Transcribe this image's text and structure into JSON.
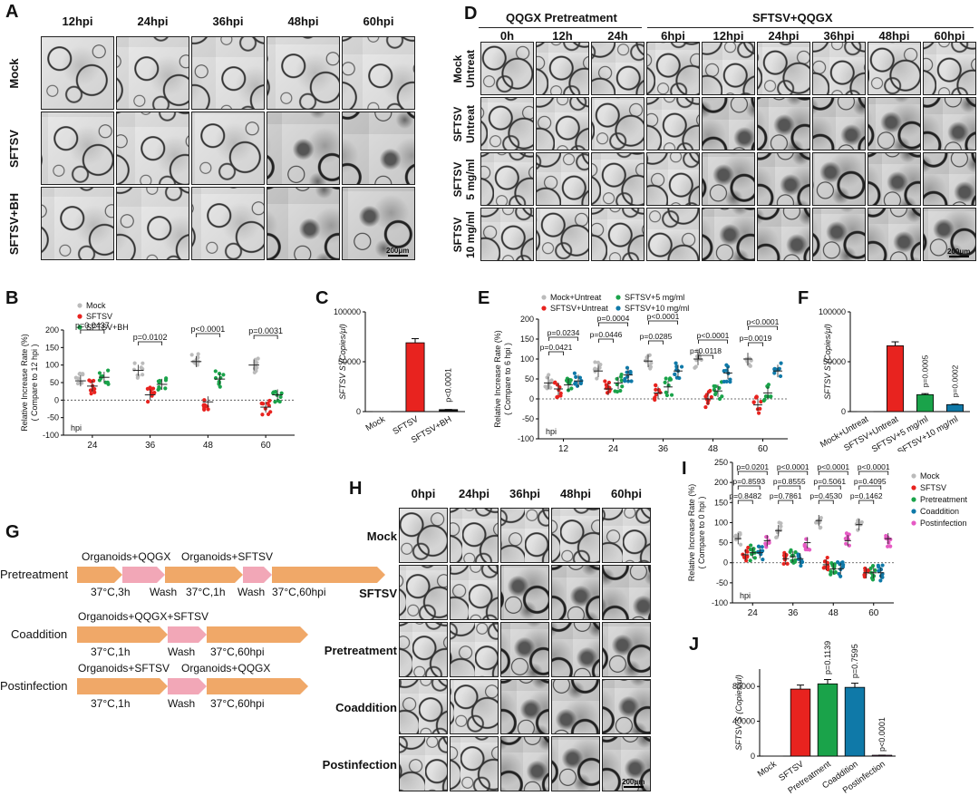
{
  "panels": {
    "A": "A",
    "B": "B",
    "C": "C",
    "D": "D",
    "E": "E",
    "F": "F",
    "G": "G",
    "H": "H",
    "I": "I",
    "J": "J"
  },
  "A": {
    "cols": [
      "12hpi",
      "24hpi",
      "36hpi",
      "48hpi",
      "60hpi"
    ],
    "rows": [
      "Mock",
      "SFTSV",
      "SFTSV+BH"
    ],
    "scale": "200μm"
  },
  "D": {
    "group1": "QQGX Pretreatment",
    "group2": "SFTSV+QQGX",
    "cols": [
      "0h",
      "12h",
      "24h",
      "6hpi",
      "12hpi",
      "24hpi",
      "36hpi",
      "48hpi",
      "60hpi"
    ],
    "rows": [
      [
        "Mock",
        "Untreat"
      ],
      [
        "SFTSV",
        "Untreat"
      ],
      [
        "SFTSV",
        "5 mg/ml"
      ],
      [
        "SFTSV",
        "10 mg/ml"
      ]
    ],
    "scale": "200μm"
  },
  "H": {
    "cols": [
      "0hpi",
      "24hpi",
      "36hpi",
      "48hpi",
      "60hpi"
    ],
    "rows": [
      "Mock",
      "SFTSV",
      "Pretreatment",
      "Coaddition",
      "Postinfection"
    ],
    "scale": "200μm"
  },
  "G": {
    "rows": [
      {
        "name": "Pretreatment",
        "steps": [
          "Organoids+QQGX",
          "Organoids+SFTSV"
        ],
        "under": [
          "37°C,3h",
          "Wash",
          "37°C,1h",
          "Wash",
          "37°C,60hpi"
        ]
      },
      {
        "name": "Coaddition",
        "steps": [
          "Organoids+QQGX+SFTSV"
        ],
        "under": [
          "37°C,1h",
          "Wash",
          "37°C,60hpi"
        ]
      },
      {
        "name": "Postinfection",
        "steps": [
          "Organoids+SFTSV",
          "Organoids+QQGX"
        ],
        "under": [
          "37°C,1h",
          "Wash",
          "37°C,60hpi"
        ]
      }
    ]
  },
  "colors": {
    "grey": "#bbbbbb",
    "red": "#e8231f",
    "green": "#1aa34a",
    "blue": "#0f79a8",
    "pink": "#e65ac4"
  },
  "chart_data": [
    {
      "panel": "B",
      "type": "scatter",
      "ylabel": "Relative Increase Rate (%)",
      "ylabel2": "( Compare to 12 hpi )",
      "xlabel": "hpi",
      "categories": [
        "24",
        "36",
        "48",
        "60"
      ],
      "ylim": [
        -100,
        200
      ],
      "yticks": [
        -100,
        -50,
        0,
        50,
        100,
        150,
        200
      ],
      "series": [
        {
          "name": "Mock",
          "color": "#bbbbbb",
          "means": [
            55,
            85,
            110,
            100
          ]
        },
        {
          "name": "SFTSV",
          "color": "#e8231f",
          "means": [
            40,
            15,
            -5,
            -20
          ]
        },
        {
          "name": "SFTSV+BH",
          "color": "#1aa34a",
          "means": [
            65,
            45,
            60,
            15
          ]
        }
      ],
      "pvalues": [
        "p=0.0437",
        "p=0.0102",
        "p<0.0001",
        "p=0.0031"
      ]
    },
    {
      "panel": "C",
      "type": "bar",
      "ylabel": "SFTSV S (Copies/μl)",
      "categories": [
        "Mock",
        "SFTSV",
        "SFTSV+BH"
      ],
      "values": [
        0,
        69000,
        2000
      ],
      "ylim": [
        0,
        100000
      ],
      "yticks": [
        "0",
        "50000",
        "100000"
      ],
      "colors": [
        "#888888",
        "#e8231f",
        "#111111"
      ],
      "annot": "p<0.0001"
    },
    {
      "panel": "E",
      "type": "scatter",
      "ylabel": "Relative Increase Rate (%)",
      "ylabel2": "( Compare to 6 hpi )",
      "xlabel": "hpi",
      "categories": [
        "12",
        "24",
        "36",
        "48",
        "60"
      ],
      "ylim": [
        -100,
        200
      ],
      "yticks": [
        -100,
        -50,
        0,
        50,
        100,
        150,
        200
      ],
      "series": [
        {
          "name": "Mock+Untreat",
          "color": "#bbbbbb",
          "means": [
            40,
            70,
            95,
            100,
            100
          ]
        },
        {
          "name": "SFTSV+Untreat",
          "color": "#e8231f",
          "means": [
            25,
            25,
            15,
            0,
            -15
          ]
        },
        {
          "name": "SFTSV+5 mg/ml",
          "color": "#1aa34a",
          "means": [
            35,
            40,
            30,
            20,
            15
          ]
        },
        {
          "name": "SFTSV+10 mg/ml",
          "color": "#0f79a8",
          "means": [
            45,
            60,
            70,
            65,
            70
          ]
        }
      ],
      "pvalues": [
        [
          "p=0.0234",
          "p=0.0421"
        ],
        [
          "p=0.0004",
          "p=0.0446"
        ],
        [
          "p<0.0001",
          "p=0.0285"
        ],
        [
          "p<0.0001",
          "p=0.0118"
        ],
        [
          "p<0.0001",
          "p=0.0019"
        ]
      ]
    },
    {
      "panel": "F",
      "type": "bar",
      "ylabel": "SFTSV S (Copies/μl)",
      "categories": [
        "Mock+Untreat",
        "SFTSV+Untreat",
        "SFTSV+5 mg/ml",
        "SFTSV+10 mg/ml"
      ],
      "values": [
        0,
        66000,
        17000,
        7000
      ],
      "ylim": [
        0,
        100000
      ],
      "yticks": [
        "0",
        "50000",
        "100000"
      ],
      "colors": [
        "#888888",
        "#e8231f",
        "#1aa34a",
        "#0f79a8"
      ],
      "annot": [
        "p=0.0005",
        "p=0.0002"
      ]
    },
    {
      "panel": "I",
      "type": "scatter",
      "ylabel": "Relative Increase Rate (%)",
      "ylabel2": "( Compare to 0 hpi )",
      "xlabel": "hpi",
      "categories": [
        "24",
        "36",
        "48",
        "60"
      ],
      "ylim": [
        -100,
        250
      ],
      "yticks": [
        -100,
        -50,
        0,
        50,
        100,
        150,
        200,
        250
      ],
      "series": [
        {
          "name": "Mock",
          "color": "#bbbbbb",
          "means": [
            60,
            80,
            105,
            95
          ]
        },
        {
          "name": "SFTSV",
          "color": "#e8231f",
          "means": [
            20,
            10,
            -5,
            -25
          ]
        },
        {
          "name": "Pretreatment",
          "color": "#1aa34a",
          "means": [
            25,
            15,
            -15,
            -25
          ]
        },
        {
          "name": "Coaddition",
          "color": "#0f79a8",
          "means": [
            25,
            10,
            -15,
            -25
          ]
        },
        {
          "name": "Postinfection",
          "color": "#e65ac4",
          "means": [
            55,
            50,
            55,
            60
          ]
        }
      ],
      "pvalues": [
        [
          "p=0.0201",
          "p=0.8593",
          "p=0.8482"
        ],
        [
          "p<0.0001",
          "p=0.8555",
          "p=0.7861"
        ],
        [
          "p<0.0001",
          "p=0.5061",
          "p=0.4530"
        ],
        [
          "p<0.0001",
          "p=0.4095",
          "p=0.1462"
        ]
      ]
    },
    {
      "panel": "J",
      "type": "bar",
      "ylabel": "SFTSV S (Copies/μl)",
      "categories": [
        "Mock",
        "SFTSV",
        "Pretreatment",
        "Coaddition",
        "Postinfection"
      ],
      "values": [
        0,
        77000,
        83000,
        79000,
        1000
      ],
      "ylim": [
        0,
        100000
      ],
      "yticks": [
        "0",
        "40000",
        "80000"
      ],
      "colors": [
        "#888888",
        "#e8231f",
        "#1aa34a",
        "#0f79a8",
        "#e65ac4"
      ],
      "annot": [
        "p=0.1139",
        "p=0.7595",
        "p<0.0001"
      ]
    }
  ]
}
